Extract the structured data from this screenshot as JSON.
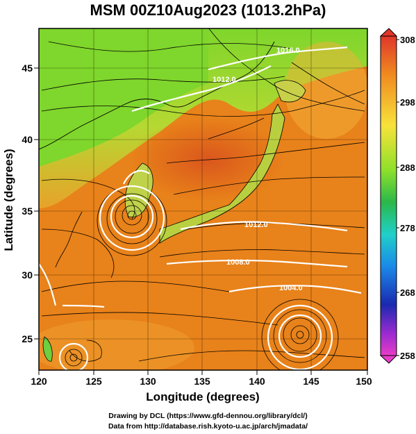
{
  "title": "MSM 00Z10Aug2023 (1013.2hPa)",
  "x_axis": {
    "label": "Longitude (degrees)",
    "ticks": [
      "120",
      "125",
      "130",
      "135",
      "140",
      "145",
      "150"
    ]
  },
  "y_axis": {
    "label": "Latitude  (degrees)",
    "ticks": [
      "25",
      "30",
      "35",
      "40",
      "45"
    ]
  },
  "colorbar": {
    "ticks": [
      "308",
      "298",
      "288",
      "278",
      "268",
      "258"
    ]
  },
  "contour_labels": [
    "1016.0",
    "1012.0",
    "1012.0",
    "1008.0",
    "1004.0"
  ],
  "credits": {
    "line1": "Drawing by DCL (https://www.gfd-dennou.org/library/dcl/)",
    "line2": "Data from http://database.rish.kyoto-u.ac.jp/arch/jmadata/"
  },
  "colors": {
    "warm": "#e8821a",
    "hot": "#d9541c",
    "mid": "#f0b030",
    "green": "#7fd62c",
    "contour": "#ffffff"
  }
}
